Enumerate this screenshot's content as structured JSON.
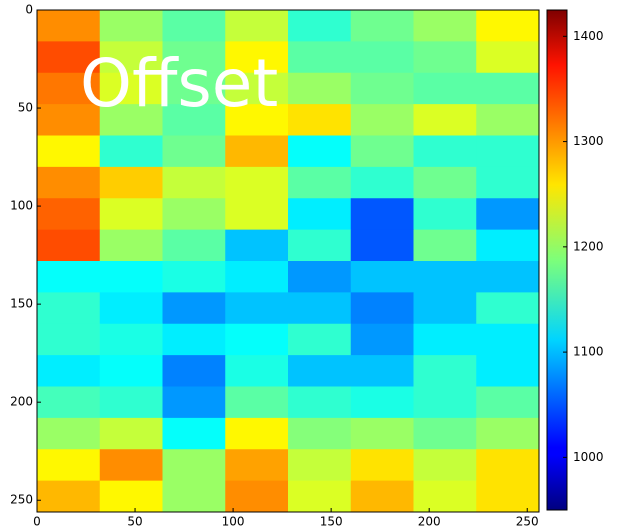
{
  "chart_data": {
    "type": "heatmap",
    "annotation": "Offset",
    "colormap": "jet",
    "xlim": [
      0,
      256
    ],
    "ylim": [
      256,
      0
    ],
    "xticks": [
      0,
      50,
      100,
      150,
      200,
      250
    ],
    "yticks": [
      0,
      50,
      100,
      150,
      200,
      250
    ],
    "clim": [
      950,
      1425
    ],
    "cticks": [
      1000,
      1100,
      1200,
      1300,
      1400
    ],
    "values": [
      [
        1300,
        1200,
        1170,
        1220,
        1150,
        1180,
        1200,
        1250
      ],
      [
        1330,
        1220,
        1180,
        1250,
        1170,
        1170,
        1180,
        1230
      ],
      [
        1310,
        1230,
        1180,
        1220,
        1200,
        1180,
        1170,
        1170
      ],
      [
        1300,
        1200,
        1170,
        1250,
        1260,
        1200,
        1230,
        1200
      ],
      [
        1250,
        1150,
        1180,
        1280,
        1130,
        1180,
        1150,
        1150
      ],
      [
        1300,
        1270,
        1220,
        1230,
        1170,
        1150,
        1180,
        1150
      ],
      [
        1320,
        1230,
        1200,
        1230,
        1120,
        1050,
        1150,
        1080
      ],
      [
        1330,
        1200,
        1170,
        1100,
        1150,
        1050,
        1180,
        1120
      ],
      [
        1130,
        1130,
        1140,
        1120,
        1080,
        1100,
        1100,
        1100
      ],
      [
        1150,
        1120,
        1080,
        1100,
        1100,
        1070,
        1100,
        1150
      ],
      [
        1150,
        1140,
        1120,
        1130,
        1150,
        1080,
        1120,
        1120
      ],
      [
        1120,
        1130,
        1070,
        1140,
        1100,
        1100,
        1150,
        1120
      ],
      [
        1160,
        1150,
        1080,
        1170,
        1150,
        1140,
        1150,
        1170
      ],
      [
        1200,
        1220,
        1130,
        1250,
        1190,
        1200,
        1180,
        1200
      ],
      [
        1250,
        1300,
        1200,
        1290,
        1220,
        1260,
        1220,
        1260
      ],
      [
        1280,
        1250,
        1200,
        1300,
        1230,
        1280,
        1230,
        1260
      ]
    ]
  }
}
